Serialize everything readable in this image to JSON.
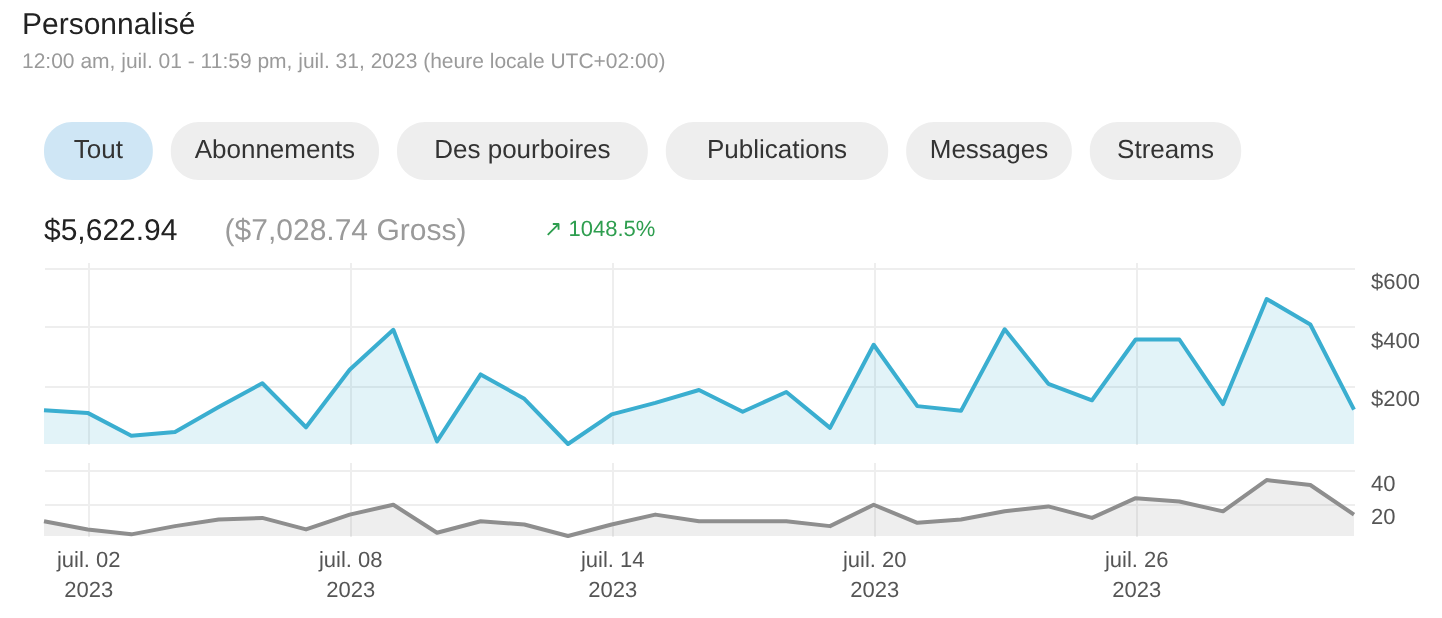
{
  "chart_data": [
    {
      "type": "area",
      "title": "Personnalisé",
      "subtitle": "12:00 am, juil. 01 - 11:59 pm, juil. 31, 2023 (heure locale UTC+02:00)",
      "annotations": [
        "Tout",
        "Abonnements",
        "Des pourboires",
        "Publications",
        "Messages",
        "Streams",
        "$5,622.94",
        "($7,028.74 Gross)",
        "↗ 1048.5%"
      ],
      "x": [
        "2023-07-01",
        "2023-07-02",
        "2023-07-03",
        "2023-07-04",
        "2023-07-05",
        "2023-07-06",
        "2023-07-07",
        "2023-07-08",
        "2023-07-09",
        "2023-07-10",
        "2023-07-11",
        "2023-07-12",
        "2023-07-13",
        "2023-07-14",
        "2023-07-15",
        "2023-07-16",
        "2023-07-17",
        "2023-07-18",
        "2023-07-19",
        "2023-07-20",
        "2023-07-21",
        "2023-07-22",
        "2023-07-23",
        "2023-07-24",
        "2023-07-25",
        "2023-07-26",
        "2023-07-27",
        "2023-07-28",
        "2023-07-29",
        "2023-07-30",
        "2023-07-31"
      ],
      "series": [
        {
          "color": "#3aaed0",
          "values": [
            115,
            106,
            28,
            41,
            126,
            207,
            57,
            253,
            389,
            9,
            237,
            154,
            0,
            101,
            140,
            184,
            110,
            177,
            55,
            338,
            129,
            113,
            391,
            205,
            149,
            356,
            356,
            136,
            494,
            407,
            117
          ]
        }
      ],
      "xlim": [
        "2023-07-01",
        "2023-07-31"
      ],
      "xticks": [
        {
          "value": "2023-07-02",
          "label": null
        },
        {
          "value": "2023-07-08",
          "label": null
        },
        {
          "value": "2023-07-14",
          "label": null
        },
        {
          "value": "2023-07-20",
          "label": null
        },
        {
          "value": "2023-07-26",
          "label": null
        }
      ],
      "ylim": [
        0,
        620
      ],
      "yticks": [
        {
          "value": 200,
          "label": "$200"
        },
        {
          "value": 400,
          "label": "$400"
        },
        {
          "value": 600,
          "label": "$600"
        }
      ],
      "tick_labels": "y",
      "grid": true,
      "line_style": "solid"
    },
    {
      "type": "area",
      "x": [
        "2023-07-01",
        "2023-07-02",
        "2023-07-03",
        "2023-07-04",
        "2023-07-05",
        "2023-07-06",
        "2023-07-07",
        "2023-07-08",
        "2023-07-09",
        "2023-07-10",
        "2023-07-11",
        "2023-07-12",
        "2023-07-13",
        "2023-07-14",
        "2023-07-15",
        "2023-07-16",
        "2023-07-17",
        "2023-07-18",
        "2023-07-19",
        "2023-07-20",
        "2023-07-21",
        "2023-07-22",
        "2023-07-23",
        "2023-07-24",
        "2023-07-25",
        "2023-07-26",
        "2023-07-27",
        "2023-07-28",
        "2023-07-29",
        "2023-07-30",
        "2023-07-31"
      ],
      "series": [
        {
          "color": "#8e8e8e",
          "values": [
            9,
            4,
            1,
            6,
            10,
            11,
            4,
            13,
            19,
            2,
            9,
            7,
            0,
            7,
            13,
            9,
            9,
            9,
            6,
            19,
            8,
            10,
            15,
            18,
            11,
            23,
            21,
            15,
            34,
            31,
            13
          ]
        }
      ],
      "xlim": [
        "2023-07-01",
        "2023-07-31"
      ],
      "xticks": [
        {
          "value": "2023-07-02",
          "label": "juil. 02 2023"
        },
        {
          "value": "2023-07-08",
          "label": "juil. 08 2023"
        },
        {
          "value": "2023-07-14",
          "label": "juil. 14 2023"
        },
        {
          "value": "2023-07-20",
          "label": "juil. 20 2023"
        },
        {
          "value": "2023-07-26",
          "label": "juil. 26 2023"
        }
      ],
      "ylim": [
        0,
        45
      ],
      "yticks": [
        20,
        40
      ],
      "grid": true,
      "line_style": "solid"
    }
  ]
}
